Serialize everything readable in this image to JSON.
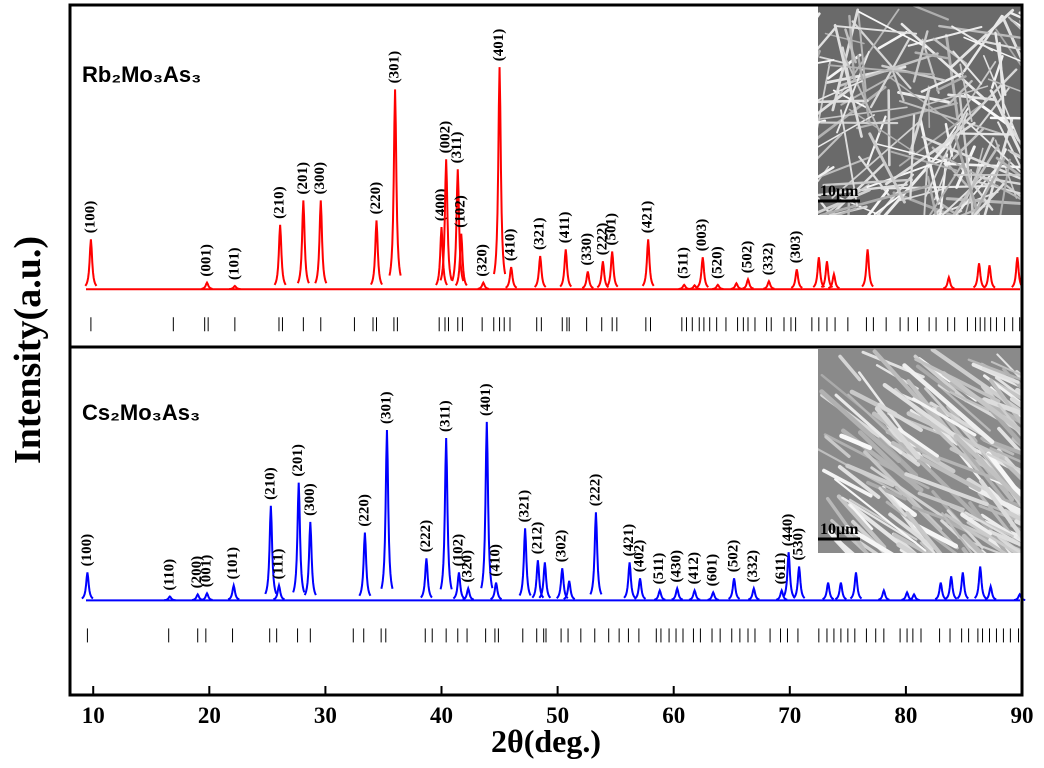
{
  "chart_data": {
    "type": "xrd",
    "xlabel": "2θ(deg.)",
    "ylabel": "Intensity(a.u.)",
    "xlim": [
      8,
      90
    ],
    "xticks": [
      10,
      20,
      30,
      40,
      50,
      60,
      70,
      80,
      90
    ],
    "panels": [
      {
        "name": "Rb₂Mo₃As₃",
        "color": "#ff0000",
        "ylim": [
          -26,
          128
        ],
        "inset_label": "10μm",
        "x": [
          9.8,
          19.8,
          22.2,
          26.1,
          28.1,
          29.6,
          34.4,
          36.0,
          40.0,
          40.4,
          41.4,
          41.7,
          43.6,
          45.0,
          46.0,
          48.5,
          50.7,
          52.6,
          53.9,
          54.7,
          57.8,
          60.9,
          61.8,
          62.5,
          63.8,
          65.4,
          66.4,
          68.2,
          70.6,
          72.5,
          73.2,
          73.8,
          76.7,
          83.7,
          86.3,
          87.2,
          89.6
        ],
        "values": [
          22.5,
          3,
          1.5,
          29,
          40,
          40,
          31,
          90,
          28,
          58.5,
          54,
          25,
          3,
          100,
          10,
          15,
          18,
          8,
          12.6,
          17,
          22.5,
          2,
          1.8,
          14.4,
          2,
          2.7,
          4.5,
          3.6,
          9,
          14.4,
          12.6,
          6.8,
          18,
          5.4,
          11.7,
          10.8,
          14.4
        ],
        "labels": [
          "(100)",
          "(001)",
          "(101)",
          "(210)",
          "(201)",
          "(300)",
          "(220)",
          "(301)",
          "(400)",
          "(002)",
          "(311)",
          "(102)",
          "(320)",
          "(401)",
          "(410)",
          "(321)",
          "(411)",
          "(330)",
          "(222)",
          "(501)",
          "(421)",
          "(511)",
          null,
          "(003)",
          "(520)",
          null,
          "(502)",
          "(332)",
          "(303)",
          null,
          null,
          null,
          null,
          null,
          null,
          null,
          null
        ],
        "reference_positions": [
          9.8,
          16.9,
          19.6,
          19.9,
          22.2,
          26.0,
          26.3,
          28.1,
          29.6,
          32.5,
          34.1,
          34.4,
          35.9,
          36.2,
          39.8,
          40.3,
          40.6,
          41.4,
          41.8,
          43.5,
          44.5,
          45.0,
          45.4,
          45.9,
          48.2,
          48.6,
          50.4,
          50.8,
          51.0,
          52.5,
          53.8,
          54.7,
          55.1,
          57.6,
          58.0,
          60.7,
          61.1,
          61.6,
          62.2,
          62.6,
          63.1,
          63.7,
          64.5,
          65.5,
          66.0,
          66.4,
          67.0,
          68.0,
          68.4,
          69.5,
          70.1,
          70.5,
          71.9,
          72.5,
          73.2,
          73.9,
          75.0,
          76.6,
          77.2,
          78.3,
          79.5,
          80.2,
          81.0,
          82.0,
          82.6,
          83.6,
          84.2,
          85.3,
          86.0,
          86.4,
          86.8,
          87.3,
          87.8,
          88.5,
          89.2,
          89.8
        ]
      },
      {
        "name": "Cs₂Mo₃As₃",
        "color": "#0000ff",
        "ylim": [
          -53,
          142
        ],
        "inset_label": "10μm",
        "x": [
          9.5,
          16.6,
          19.0,
          19.8,
          22.1,
          25.3,
          26.0,
          27.7,
          28.7,
          33.4,
          35.3,
          38.7,
          40.4,
          41.5,
          42.3,
          43.9,
          44.7,
          47.2,
          48.3,
          48.9,
          50.4,
          51.0,
          53.3,
          56.2,
          57.1,
          58.8,
          60.3,
          61.8,
          63.4,
          65.2,
          66.9,
          69.3,
          69.9,
          70.8,
          73.3,
          74.4,
          75.7,
          78.1,
          80.1,
          80.7,
          83.0,
          83.9,
          84.9,
          86.4,
          87.3,
          89.8
        ],
        "values": [
          15.7,
          2.2,
          3.4,
          4,
          8.4,
          53,
          8.4,
          66,
          44,
          38,
          95.5,
          23.6,
          91,
          15.7,
          6.7,
          100,
          10,
          40.4,
          22.5,
          21.3,
          18,
          11,
          49.4,
          21.3,
          12.4,
          5.6,
          6.7,
          5.6,
          4.5,
          12.4,
          6.7,
          5.6,
          27,
          19,
          10,
          10,
          15.7,
          5.6,
          4.5,
          3.4,
          10,
          13.5,
          15.7,
          19,
          7.9,
          3.4
        ],
        "labels": [
          "(100)",
          "(110)",
          "(200)",
          "(001)",
          "(101)",
          "(210)",
          "(111)",
          "(201)",
          "(300)",
          "(220)",
          "(301)",
          "(222)",
          "(311)",
          "(102)",
          "(320)",
          "(401)",
          "(410)",
          "(321)",
          "(212)",
          null,
          "(302)",
          null,
          "(222)",
          "(421)",
          "(402)",
          "(511)",
          "(430)",
          "(412)",
          "(601)",
          "(502)",
          "(332)",
          "(611)",
          "(440)",
          "(530)",
          null,
          null,
          null,
          null,
          null,
          null,
          null,
          null,
          null,
          null,
          null,
          null
        ],
        "reference_positions": [
          9.5,
          16.5,
          19.0,
          19.7,
          22.0,
          25.2,
          25.8,
          27.6,
          28.7,
          32.4,
          33.3,
          34.8,
          35.2,
          38.6,
          39.2,
          40.4,
          41.4,
          42.2,
          43.8,
          44.6,
          44.9,
          47.0,
          48.2,
          48.8,
          49.0,
          50.3,
          50.9,
          52.0,
          53.2,
          54.4,
          55.3,
          56.1,
          57.0,
          58.5,
          58.9,
          59.6,
          60.2,
          60.8,
          61.7,
          62.3,
          63.3,
          64.0,
          65.0,
          65.7,
          66.4,
          67.0,
          68.3,
          69.2,
          69.8,
          70.7,
          72.5,
          73.2,
          73.8,
          74.4,
          75.0,
          75.6,
          76.6,
          77.4,
          78.1,
          79.5,
          80.1,
          80.6,
          81.3,
          82.9,
          83.8,
          84.8,
          85.4,
          86.2,
          86.6,
          87.2,
          87.8,
          88.4,
          89.0,
          89.7
        ]
      }
    ]
  }
}
